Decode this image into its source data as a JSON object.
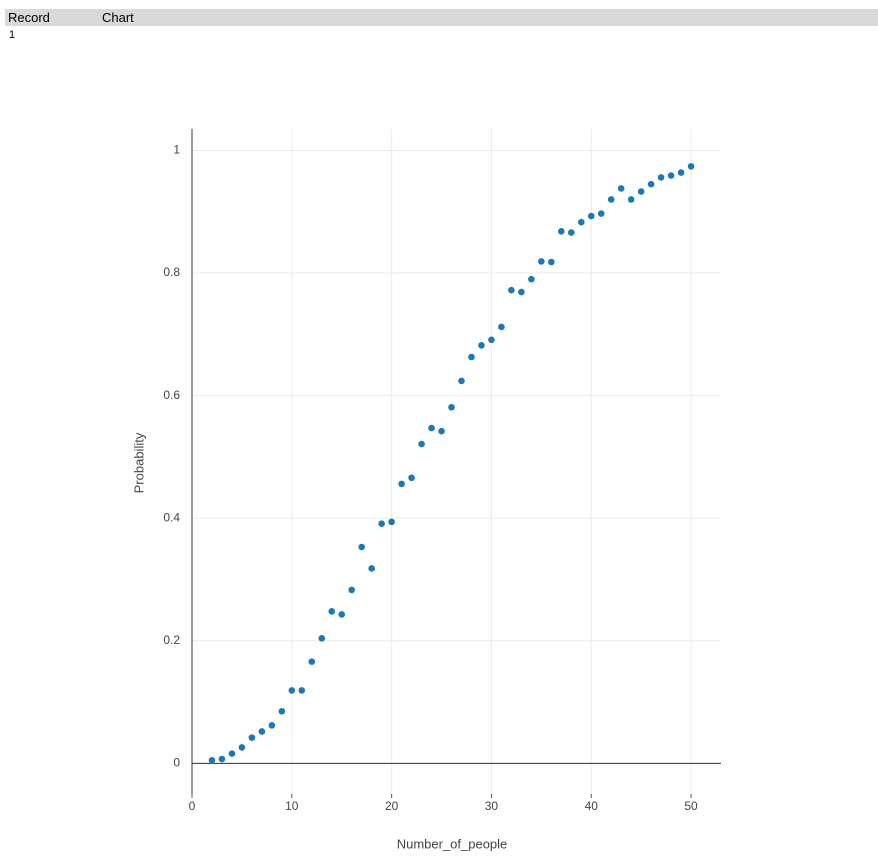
{
  "table": {
    "headers": [
      "Record",
      "Chart"
    ],
    "rows": [
      [
        "1"
      ]
    ]
  },
  "chart_data": {
    "type": "scatter",
    "xlabel": "Number_of_people",
    "ylabel": "Probability",
    "x": [
      2,
      3,
      4,
      5,
      6,
      7,
      8,
      9,
      10,
      11,
      12,
      13,
      14,
      15,
      16,
      17,
      18,
      19,
      20,
      21,
      22,
      23,
      24,
      25,
      26,
      27,
      28,
      29,
      30,
      31,
      32,
      33,
      34,
      35,
      36,
      37,
      38,
      39,
      40,
      41,
      42,
      43,
      44,
      45,
      46,
      47,
      48,
      49,
      50
    ],
    "series": [
      {
        "color": "#1f77b4",
        "values": [
          0.005,
          0.007,
          0.016,
          0.026,
          0.042,
          0.052,
          0.062,
          0.085,
          0.119,
          0.119,
          0.166,
          0.204,
          0.248,
          0.243,
          0.283,
          0.353,
          0.318,
          0.391,
          0.394,
          0.456,
          0.466,
          0.521,
          0.547,
          0.542,
          0.581,
          0.624,
          0.663,
          0.682,
          0.691,
          0.712,
          0.772,
          0.769,
          0.79,
          0.819,
          0.818,
          0.868,
          0.866,
          0.883,
          0.893,
          0.897,
          0.92,
          0.938,
          0.92,
          0.933,
          0.945,
          0.956,
          0.959,
          0.964,
          0.974
        ]
      }
    ],
    "xlim": [
      0,
      53
    ],
    "ylim": [
      -0.05,
      1.035
    ],
    "xticks": [
      0,
      10,
      20,
      30,
      40,
      50
    ],
    "yticks": [
      0,
      0.2,
      0.4,
      0.6,
      0.8,
      1
    ],
    "grid": true
  }
}
